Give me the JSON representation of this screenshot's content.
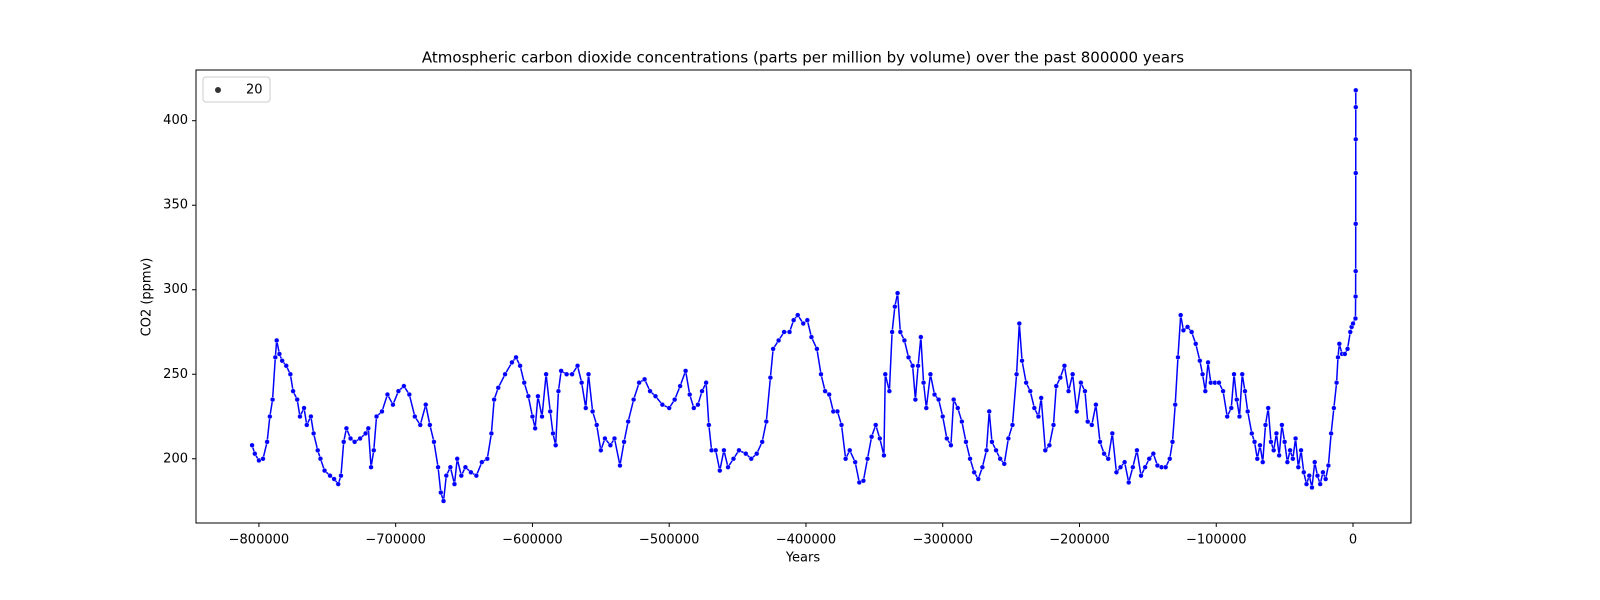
{
  "chart_data": {
    "type": "line",
    "title": "Atmospheric carbon dioxide concentrations (parts per million by volume) over the past 800000 years",
    "x_label": "Years",
    "y_label": "CO2 (ppmv)",
    "x": [
      -805000,
      -803000,
      -800000,
      -797000,
      -794000,
      -792000,
      -790000,
      -788000,
      -787000,
      -785000,
      -783000,
      -780000,
      -777000,
      -775000,
      -772000,
      -770000,
      -767000,
      -765000,
      -762000,
      -760000,
      -757000,
      -755000,
      -752000,
      -748000,
      -745000,
      -742000,
      -740000,
      -738000,
      -736000,
      -733000,
      -730000,
      -726000,
      -722000,
      -720000,
      -718000,
      -716000,
      -714000,
      -710000,
      -706000,
      -702000,
      -698000,
      -694000,
      -690000,
      -686000,
      -682000,
      -678000,
      -675000,
      -672000,
      -669000,
      -667000,
      -665000,
      -663000,
      -660000,
      -657000,
      -655000,
      -652000,
      -649000,
      -645000,
      -641000,
      -637000,
      -633000,
      -630000,
      -628000,
      -625000,
      -620000,
      -615000,
      -612000,
      -609000,
      -606000,
      -603000,
      -600000,
      -598000,
      -596000,
      -593000,
      -590000,
      -587000,
      -585000,
      -583000,
      -581000,
      -579000,
      -575000,
      -571000,
      -567000,
      -564000,
      -561000,
      -559000,
      -556000,
      -553000,
      -550000,
      -547000,
      -543000,
      -540000,
      -536000,
      -533000,
      -530000,
      -526000,
      -522000,
      -518000,
      -514000,
      -510000,
      -505000,
      -500000,
      -496000,
      -492000,
      -488000,
      -485000,
      -482000,
      -479000,
      -476000,
      -473000,
      -471000,
      -469000,
      -466000,
      -463000,
      -460000,
      -457000,
      -453000,
      -449000,
      -444000,
      -440000,
      -436000,
      -432000,
      -429000,
      -426000,
      -424000,
      -420000,
      -416000,
      -412000,
      -409000,
      -406000,
      -402000,
      -399000,
      -396000,
      -392000,
      -389000,
      -386000,
      -383000,
      -380000,
      -377000,
      -374000,
      -371000,
      -368000,
      -364000,
      -361000,
      -358000,
      -355000,
      -352000,
      -349000,
      -346000,
      -343000,
      -342000,
      -339000,
      -337000,
      -335000,
      -333000,
      -331000,
      -328000,
      -325000,
      -322000,
      -320000,
      -318000,
      -316000,
      -314000,
      -312000,
      -309000,
      -306000,
      -303000,
      -300000,
      -297000,
      -294000,
      -292000,
      -289000,
      -286000,
      -283000,
      -280000,
      -277000,
      -274000,
      -271000,
      -268000,
      -266000,
      -264000,
      -261000,
      -258000,
      -255000,
      -252000,
      -249000,
      -246000,
      -244000,
      -242000,
      -239000,
      -236000,
      -233000,
      -230000,
      -228000,
      -225000,
      -222000,
      -219000,
      -217000,
      -214000,
      -211000,
      -208000,
      -205000,
      -202000,
      -199000,
      -196000,
      -194000,
      -191000,
      -188000,
      -185000,
      -182000,
      -179000,
      -176000,
      -173000,
      -170000,
      -167000,
      -164000,
      -161000,
      -158000,
      -155000,
      -152000,
      -149000,
      -146000,
      -143000,
      -140000,
      -137000,
      -134000,
      -132000,
      -130000,
      -128000,
      -126000,
      -124000,
      -121000,
      -118000,
      -115000,
      -112000,
      -110000,
      -108000,
      -106000,
      -104000,
      -101000,
      -98000,
      -95000,
      -92000,
      -89000,
      -87000,
      -85000,
      -83000,
      -81000,
      -79000,
      -77000,
      -74000,
      -72000,
      -70000,
      -68000,
      -66000,
      -64000,
      -62000,
      -60000,
      -58000,
      -56000,
      -54000,
      -52000,
      -50000,
      -48000,
      -46000,
      -44000,
      -42000,
      -40000,
      -38000,
      -36000,
      -34000,
      -32000,
      -30000,
      -28000,
      -26000,
      -24000,
      -22000,
      -20000,
      -18000,
      -16000,
      -14000,
      -12000,
      -11000,
      -10000,
      -8000,
      -6000,
      -4000,
      -2000,
      -1000,
      0,
      1800,
      1900,
      1950,
      1980,
      2000,
      2010,
      2018,
      2022
    ],
    "series": [
      {
        "name": "20",
        "color": "#0000ff",
        "values": [
          208,
          203,
          199,
          200,
          210,
          225,
          235,
          260,
          270,
          262,
          258,
          255,
          250,
          240,
          235,
          225,
          230,
          220,
          225,
          215,
          205,
          200,
          193,
          190,
          188,
          185,
          190,
          210,
          218,
          212,
          210,
          212,
          215,
          218,
          195,
          205,
          225,
          228,
          238,
          232,
          240,
          243,
          238,
          225,
          220,
          232,
          220,
          210,
          195,
          180,
          175,
          190,
          195,
          185,
          200,
          190,
          195,
          192,
          190,
          198,
          200,
          215,
          235,
          242,
          250,
          257,
          260,
          255,
          245,
          237,
          225,
          218,
          237,
          225,
          250,
          228,
          215,
          208,
          240,
          252,
          250,
          250,
          255,
          245,
          230,
          250,
          228,
          220,
          205,
          212,
          208,
          212,
          196,
          210,
          222,
          235,
          245,
          247,
          240,
          237,
          232,
          230,
          235,
          243,
          252,
          238,
          230,
          232,
          240,
          245,
          220,
          205,
          205,
          193,
          205,
          195,
          200,
          205,
          203,
          200,
          203,
          210,
          222,
          248,
          265,
          270,
          275,
          275,
          282,
          285,
          280,
          282,
          272,
          265,
          250,
          240,
          238,
          228,
          228,
          220,
          200,
          205,
          198,
          186,
          187,
          200,
          213,
          220,
          212,
          202,
          250,
          240,
          275,
          290,
          298,
          275,
          270,
          260,
          255,
          235,
          255,
          272,
          245,
          230,
          250,
          238,
          235,
          225,
          212,
          208,
          235,
          230,
          222,
          210,
          200,
          192,
          188,
          195,
          205,
          228,
          210,
          205,
          200,
          197,
          212,
          220,
          250,
          280,
          258,
          245,
          240,
          230,
          225,
          236,
          205,
          208,
          220,
          243,
          248,
          255,
          240,
          250,
          228,
          245,
          240,
          222,
          220,
          232,
          210,
          203,
          200,
          215,
          192,
          195,
          198,
          186,
          195,
          205,
          190,
          195,
          200,
          203,
          196,
          195,
          195,
          200,
          210,
          232,
          260,
          285,
          276,
          278,
          275,
          268,
          258,
          250,
          240,
          257,
          245,
          245,
          245,
          240,
          225,
          230,
          250,
          235,
          225,
          250,
          240,
          228,
          215,
          210,
          200,
          208,
          198,
          220,
          230,
          210,
          205,
          215,
          202,
          220,
          210,
          198,
          205,
          200,
          212,
          195,
          205,
          192,
          185,
          190,
          183,
          198,
          190,
          185,
          192,
          188,
          196,
          215,
          230,
          245,
          260,
          268,
          262,
          262,
          265,
          275,
          278,
          280,
          283,
          296,
          311,
          339,
          369,
          389,
          408,
          418
        ]
      }
    ],
    "legend_marker_color": "#333333",
    "legend_position": "upper left",
    "xlim": [
      -846000,
      42400
    ],
    "ylim": [
      162,
      430
    ],
    "xticks": [
      {
        "value": -800000,
        "label": "−800000"
      },
      {
        "value": -700000,
        "label": "−700000"
      },
      {
        "value": -600000,
        "label": "−600000"
      },
      {
        "value": -500000,
        "label": "−500000"
      },
      {
        "value": -400000,
        "label": "−400000"
      },
      {
        "value": -300000,
        "label": "−300000"
      },
      {
        "value": -200000,
        "label": "−200000"
      },
      {
        "value": -100000,
        "label": "−100000"
      },
      0
    ],
    "yticks": [
      200,
      250,
      300,
      350,
      400
    ]
  }
}
